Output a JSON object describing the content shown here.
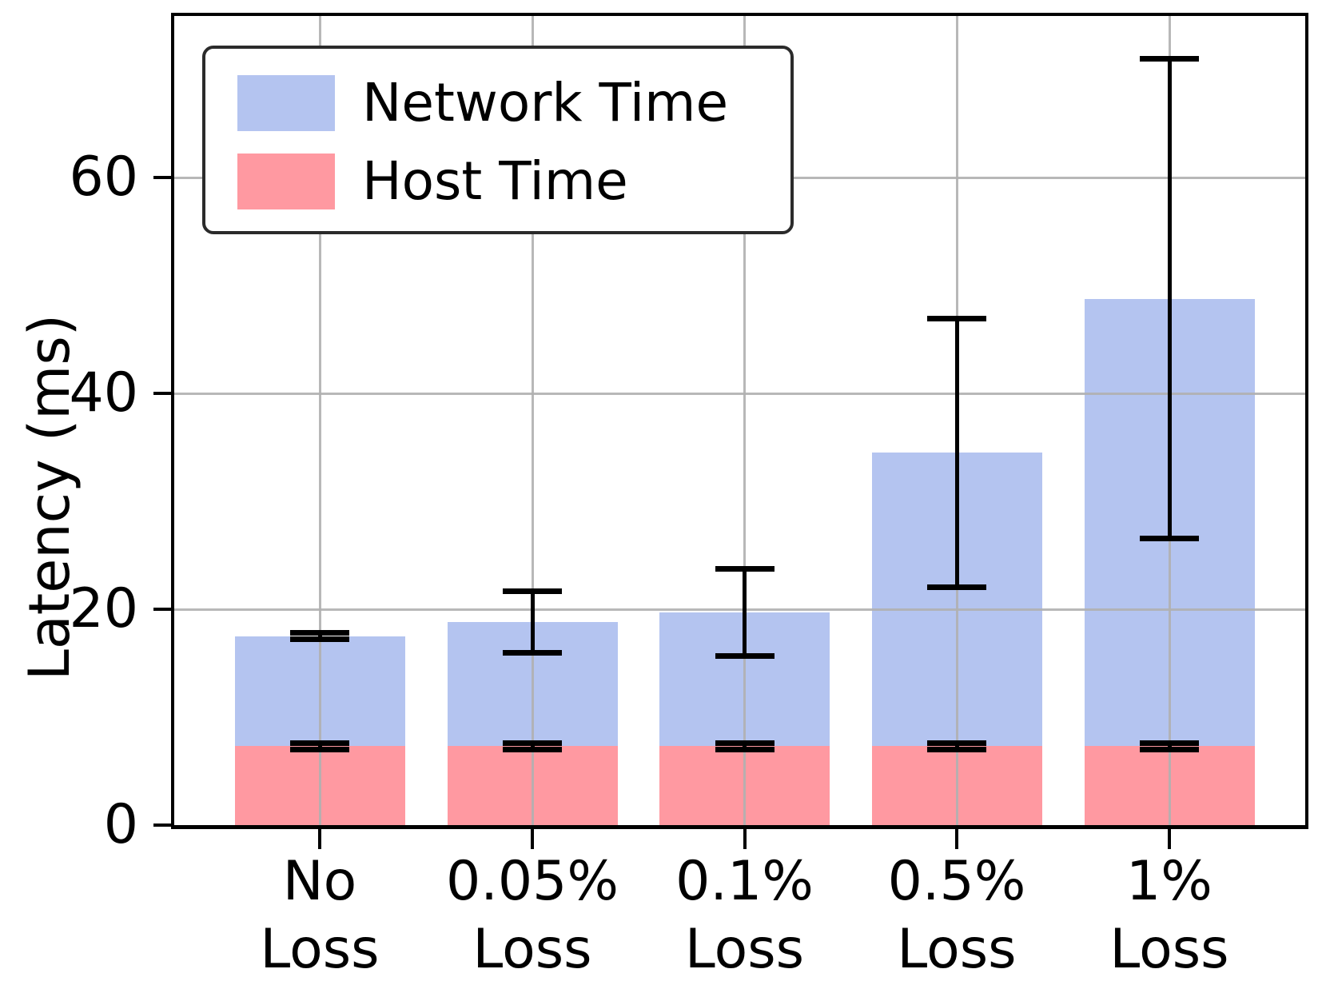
{
  "chart_data": {
    "type": "bar",
    "stacked": true,
    "title": "",
    "xlabel": "",
    "ylabel": "Latency (ms)",
    "ylim": [
      0,
      75
    ],
    "yticks": [
      0,
      20,
      40,
      60
    ],
    "grid": true,
    "legend_position": "upper-left",
    "categories": [
      "No Loss",
      "0.05% Loss",
      "0.1% Loss",
      "0.5% Loss",
      "1% Loss"
    ],
    "category_lines": [
      [
        "No",
        "Loss"
      ],
      [
        "0.05%",
        "Loss"
      ],
      [
        "0.1%",
        "Loss"
      ],
      [
        "0.5%",
        "Loss"
      ],
      [
        "1%",
        "Loss"
      ]
    ],
    "series": [
      {
        "name": "Network Time",
        "color": "#b4c4f0",
        "values": [
          10.2,
          11.5,
          12.4,
          27.2,
          41.5
        ]
      },
      {
        "name": "Host Time",
        "color": "#ff99a1",
        "values": [
          7.3,
          7.3,
          7.3,
          7.3,
          7.3
        ]
      }
    ],
    "totals": [
      17.5,
      18.8,
      19.7,
      34.5,
      48.8
    ],
    "total_error": [
      0.3,
      2.85,
      4.05,
      12.45,
      22.25
    ],
    "host_error": [
      0.3,
      0.3,
      0.3,
      0.3,
      0.3
    ],
    "error_color": "#000000",
    "grid_color": "#b0b0b0",
    "axis_color": "#000000"
  }
}
